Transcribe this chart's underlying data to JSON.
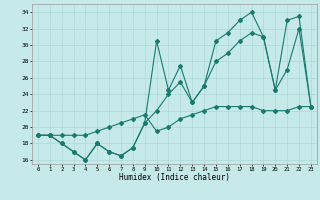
{
  "xlabel": "Humidex (Indice chaleur)",
  "bg_color": "#c6eaea",
  "grid_color": "#b0d8d8",
  "line_color": "#1a7a6e",
  "xlim": [
    -0.5,
    23.5
  ],
  "ylim": [
    15.5,
    35.0
  ],
  "xticks": [
    0,
    1,
    2,
    3,
    4,
    5,
    6,
    7,
    8,
    9,
    10,
    11,
    12,
    13,
    14,
    15,
    16,
    17,
    18,
    19,
    20,
    21,
    22,
    23
  ],
  "yticks": [
    16,
    18,
    20,
    22,
    24,
    26,
    28,
    30,
    32,
    34
  ],
  "line1_x": [
    0,
    1,
    2,
    3,
    4,
    5,
    6,
    7,
    8,
    9,
    10,
    11,
    12,
    13,
    14,
    15,
    16,
    17,
    18,
    19,
    20,
    21,
    22,
    23
  ],
  "line1_y": [
    19,
    19,
    18,
    17,
    16,
    18,
    17,
    16.5,
    17.5,
    20.5,
    30.5,
    24.5,
    27.5,
    23,
    25,
    30.5,
    31.5,
    33,
    34,
    31,
    24.5,
    33,
    33.5,
    22.5
  ],
  "line2_x": [
    0,
    1,
    2,
    3,
    4,
    5,
    6,
    7,
    8,
    9,
    10,
    11,
    12,
    13,
    14,
    15,
    16,
    17,
    18,
    19,
    20,
    21,
    22,
    23
  ],
  "line2_y": [
    19,
    19,
    18,
    17,
    16,
    18,
    17,
    16.5,
    17.5,
    20.5,
    22,
    24,
    25.5,
    23,
    25,
    28,
    29,
    30.5,
    31.5,
    31,
    24.5,
    27,
    32,
    22.5
  ],
  "line3_x": [
    0,
    1,
    2,
    3,
    4,
    5,
    6,
    7,
    8,
    9,
    10,
    11,
    12,
    13,
    14,
    15,
    16,
    17,
    18,
    19,
    20,
    21,
    22,
    23
  ],
  "line3_y": [
    19,
    19,
    19,
    19,
    19,
    19.5,
    20,
    20.5,
    21,
    21.5,
    19.5,
    20,
    21,
    21.5,
    22,
    22.5,
    22.5,
    22.5,
    22.5,
    22,
    22,
    22,
    22.5,
    22.5
  ]
}
